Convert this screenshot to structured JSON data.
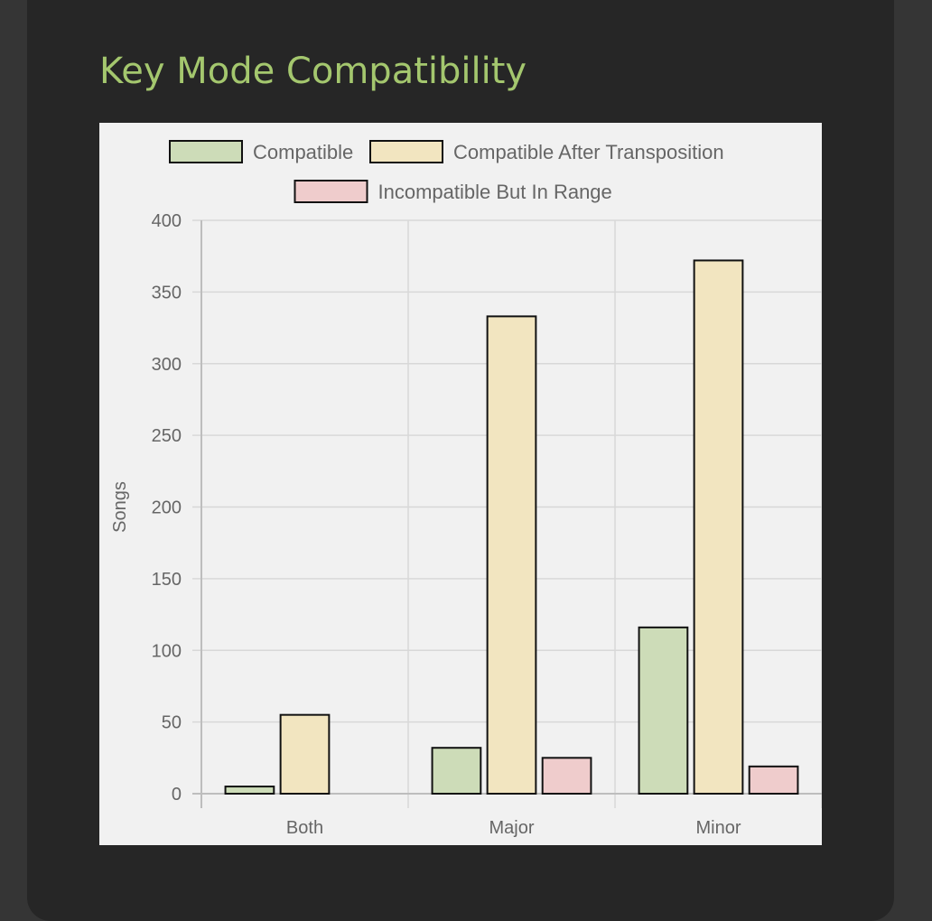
{
  "page": {
    "title": "Key Mode Compatibility"
  },
  "colors": {
    "title": "#a4c76e",
    "panel_bg": "#f1f1f1",
    "card_bg": "#262626",
    "page_bg": "#353535"
  },
  "chart_data": {
    "type": "bar",
    "title": "",
    "xlabel": "",
    "ylabel": "Songs",
    "categories": [
      "Both",
      "Major",
      "Minor"
    ],
    "ylim": [
      0,
      400
    ],
    "yticks": [
      0,
      50,
      100,
      150,
      200,
      250,
      300,
      350,
      400
    ],
    "grid": true,
    "legend_position": "top",
    "series": [
      {
        "name": "Compatible",
        "values": [
          5,
          32,
          116
        ],
        "color": "#cddcb8"
      },
      {
        "name": "Compatible After Transposition",
        "values": [
          55,
          333,
          372
        ],
        "color": "#f2e5c0"
      },
      {
        "name": "Incompatible But In Range",
        "values": [
          0,
          25,
          19
        ],
        "color": "#efcccc"
      }
    ]
  }
}
